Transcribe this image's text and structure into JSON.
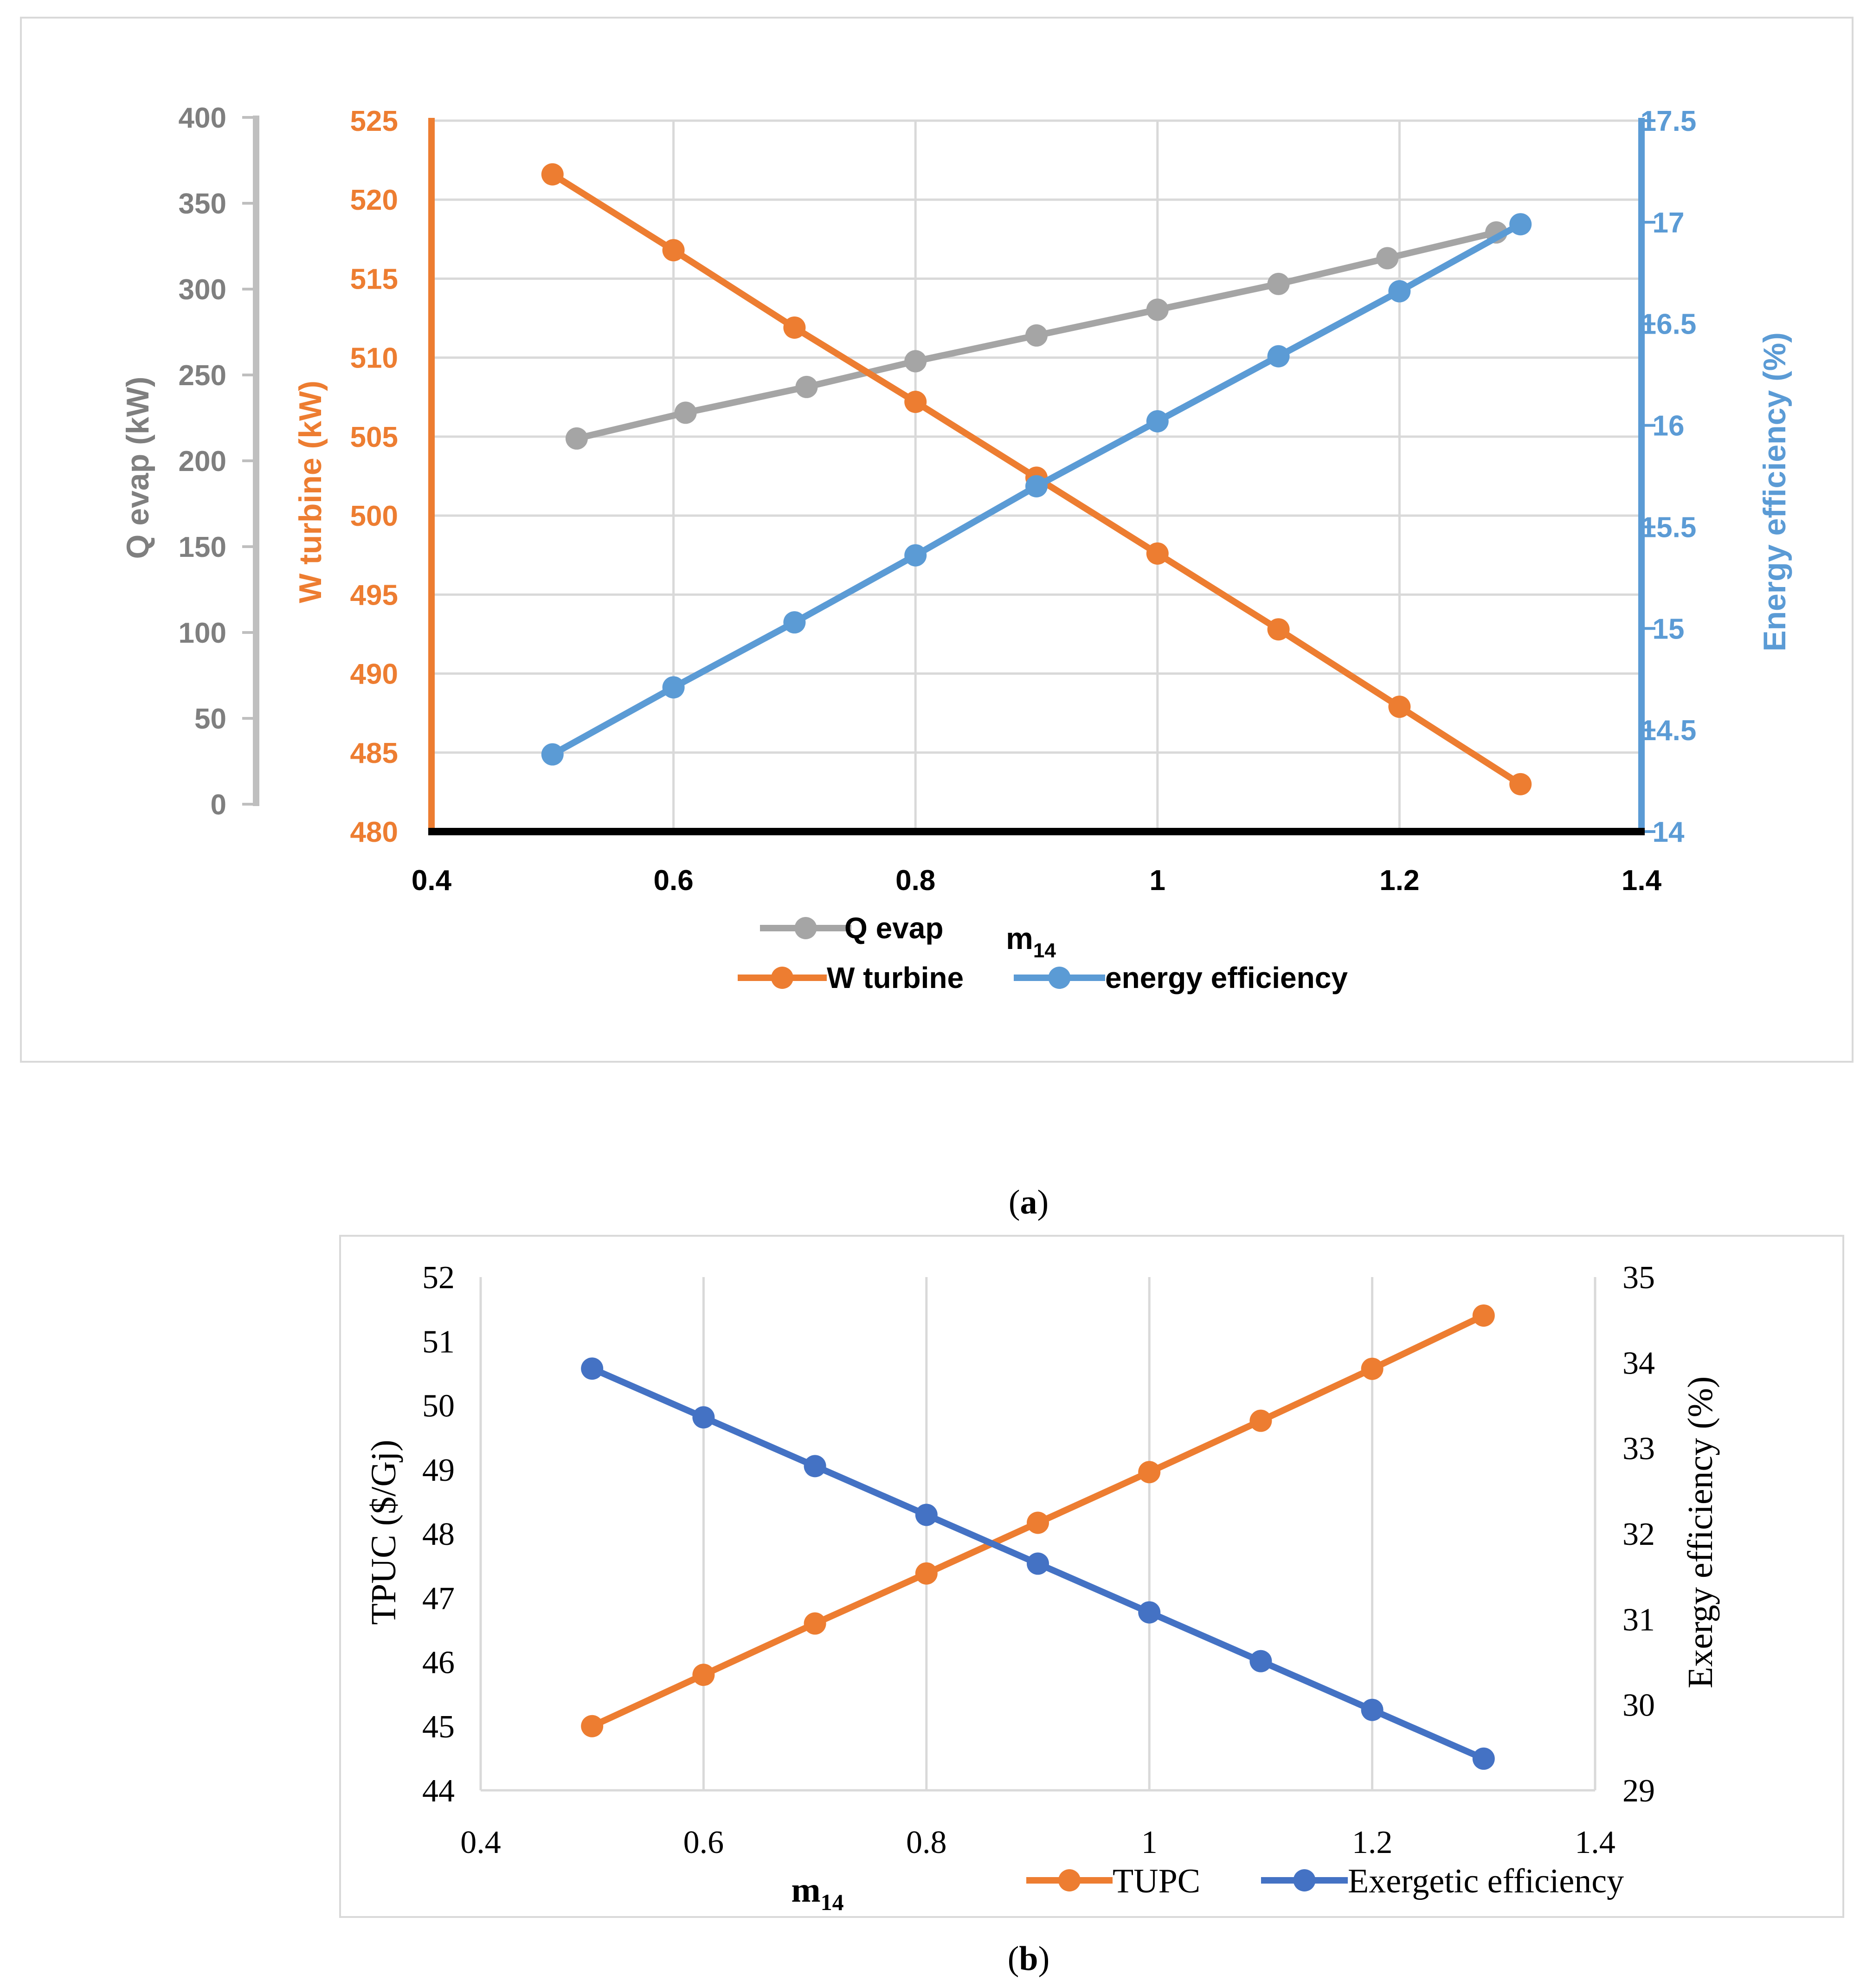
{
  "colors": {
    "gray": "#a5a5a5",
    "orange": "#ed7d31",
    "blue_light": "#5b9bd5",
    "blue_dark": "#4472c4",
    "gray_axis": "#bfbfbf",
    "tick_gray": "#7f7f7f",
    "grid": "#d9d9d9"
  },
  "chart_data": [
    {
      "type": "line",
      "panel_caption_open": "(",
      "panel_caption_letter": "a",
      "panel_caption_close": ")",
      "xlabel": "m",
      "xlabel_sub": "14",
      "xlim": [
        0.4,
        1.4
      ],
      "x_ticks": [
        "0.4",
        "0.6",
        "0.8",
        "1",
        "1.2",
        "1.4"
      ],
      "axes": {
        "q_evap": {
          "label": "Q evap (kW)",
          "lim": [
            0,
            400
          ],
          "ticks": [
            "0",
            "50",
            "100",
            "150",
            "200",
            "250",
            "300",
            "350",
            "400"
          ]
        },
        "w_turbine": {
          "label": "W turbine (kW)",
          "lim": [
            480,
            525
          ],
          "ticks": [
            "480",
            "485",
            "490",
            "495",
            "500",
            "505",
            "510",
            "515",
            "520",
            "525"
          ]
        },
        "energy_efficiency": {
          "label": "Energy efficiency (%)",
          "lim": [
            14,
            17.5
          ],
          "ticks": [
            "14",
            "14.5",
            "15",
            "15.5",
            "16",
            "16.5",
            "17",
            "17.5"
          ]
        }
      },
      "series": [
        {
          "name": "Q evap",
          "axis": "q_evap",
          "color_key": "gray",
          "x": [
            0.52,
            0.61,
            0.71,
            0.8,
            0.9,
            1.0,
            1.1,
            1.19,
            1.28
          ],
          "values": [
            213,
            228,
            243,
            258,
            273,
            288,
            303,
            318,
            333
          ]
        },
        {
          "name": "W turbine",
          "axis": "w_turbine",
          "color_key": "orange",
          "x": [
            0.5,
            0.6,
            0.7,
            0.8,
            0.9,
            1.0,
            1.1,
            1.2,
            1.3
          ],
          "values": [
            521.6,
            516.8,
            511.9,
            507.2,
            502.4,
            497.6,
            492.8,
            487.9,
            483.0
          ]
        },
        {
          "name": "energy efficiency",
          "axis": "energy_efficiency",
          "color_key": "blue_light",
          "x": [
            0.5,
            0.6,
            0.7,
            0.8,
            0.9,
            1.0,
            1.1,
            1.2,
            1.3
          ],
          "values": [
            14.38,
            14.71,
            15.03,
            15.36,
            15.7,
            16.02,
            16.34,
            16.66,
            16.99
          ]
        }
      ],
      "legend": [
        "Q evap",
        "W turbine",
        "energy efficiency"
      ]
    },
    {
      "type": "line",
      "panel_caption_open": "(",
      "panel_caption_letter": "b",
      "panel_caption_close": ")",
      "xlabel": "m",
      "xlabel_sub": "14",
      "xlim": [
        0.4,
        1.4
      ],
      "x_ticks": [
        "0.4",
        "0.6",
        "0.8",
        "1",
        "1.2",
        "1.4"
      ],
      "axes": {
        "tpuc": {
          "label": "TPUC ($/Gj)",
          "lim": [
            44,
            52
          ],
          "ticks": [
            "44",
            "45",
            "46",
            "47",
            "48",
            "49",
            "50",
            "51",
            "52"
          ]
        },
        "exergy": {
          "label": "Exergy efficiency (%)",
          "lim": [
            29,
            35
          ],
          "ticks": [
            "29",
            "30",
            "31",
            "32",
            "33",
            "34",
            "35"
          ]
        }
      },
      "series": [
        {
          "name": "TUPC",
          "axis": "tpuc",
          "color_key": "orange",
          "x": [
            0.5,
            0.6,
            0.7,
            0.8,
            0.9,
            1.0,
            1.1,
            1.2,
            1.3
          ],
          "values": [
            45.0,
            45.8,
            46.6,
            47.38,
            48.17,
            48.96,
            49.76,
            50.57,
            51.4
          ]
        },
        {
          "name": "Exergetic efficiency",
          "axis": "exergy",
          "color_key": "blue_dark",
          "x": [
            0.5,
            0.6,
            0.7,
            0.8,
            0.9,
            1.0,
            1.1,
            1.2,
            1.3
          ],
          "values": [
            33.93,
            33.36,
            32.79,
            32.22,
            31.65,
            31.08,
            30.51,
            29.94,
            29.37
          ]
        }
      ],
      "legend": [
        "TUPC",
        "Exergetic efficiency"
      ]
    }
  ]
}
